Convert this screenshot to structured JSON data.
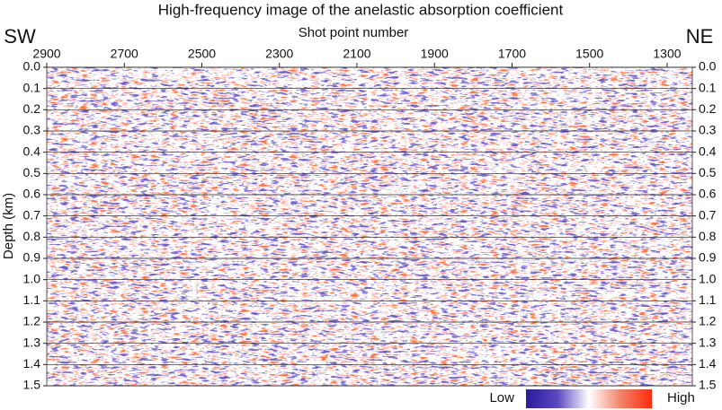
{
  "chart_data": {
    "type": "image",
    "title": "High-frequency image of the anelastic absorption coefficient",
    "x_label": "Shot point number",
    "y_label": "Depth (km)",
    "left_annotation": "SW",
    "right_annotation": "NE",
    "xlim": [
      2900,
      1235
    ],
    "xticks": [
      2900,
      2700,
      2500,
      2300,
      2100,
      1900,
      1700,
      1500,
      1300
    ],
    "ylim": [
      0,
      1.5
    ],
    "yticks": [
      {
        "value": 0,
        "label": "0.0"
      },
      0.1,
      0.2,
      0.3,
      0.4,
      0.5,
      0.6,
      0.7,
      0.8,
      0.9,
      {
        "value": 1,
        "label": "1.0"
      },
      1.1,
      1.2,
      1.3,
      1.4,
      1.5
    ],
    "grid": true,
    "colorbar": {
      "low_label": "Low",
      "high_label": "High",
      "colors": [
        "#2b1b9c",
        "#5a48c0",
        "#ffffff",
        "#f2846a",
        "#ff2a0a"
      ]
    }
  }
}
